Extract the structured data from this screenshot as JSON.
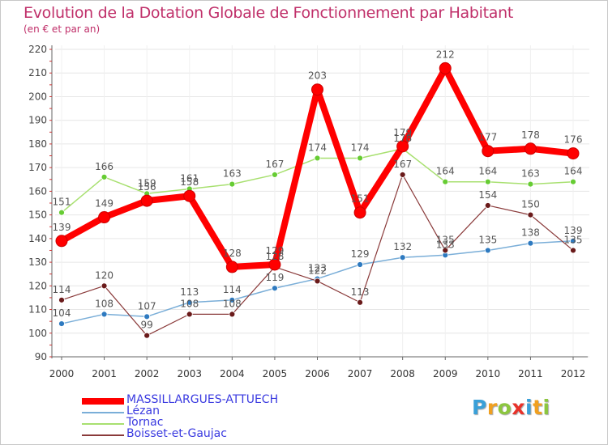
{
  "title": "Evolution de la Dotation Globale de Fonctionnement par Habitant",
  "subtitle": "(en € et par an)",
  "logo": {
    "text": "Proxiti",
    "letters": [
      {
        "ch": "P",
        "color": "#3aa0d8"
      },
      {
        "ch": "r",
        "color": "#f0a020"
      },
      {
        "ch": "o",
        "color": "#8cc63f"
      },
      {
        "ch": "x",
        "color": "#e8322a"
      },
      {
        "ch": "i",
        "color": "#3aa0d8"
      },
      {
        "ch": "t",
        "color": "#f0a020"
      },
      {
        "ch": "i",
        "color": "#8cc63f"
      }
    ]
  },
  "chart_data": {
    "type": "line",
    "title": "Evolution de la Dotation Globale de Fonctionnement par Habitant",
    "ylabel": "(en € et par an)",
    "xlabel": "",
    "x": [
      "2000",
      "2001",
      "2002",
      "2003",
      "2004",
      "2005",
      "2006",
      "2007",
      "2008",
      "2009",
      "2010",
      "2011",
      "2012"
    ],
    "ylim": [
      90,
      220
    ],
    "yticks": [
      90,
      100,
      110,
      120,
      130,
      140,
      150,
      160,
      170,
      180,
      190,
      200,
      210,
      220
    ],
    "legend_position": "bottom-left",
    "series": [
      {
        "name": "MASSILLARGUES-ATTUECH",
        "color": "#ff0000",
        "marker": "#e00000",
        "legend_text_color": "#3a3ae0",
        "values": [
          139,
          149,
          156,
          158,
          128,
          129,
          203,
          151,
          179,
          212,
          177,
          178,
          176
        ]
      },
      {
        "name": "Lézan",
        "color": "#7aaed8",
        "marker": "#2e7ac0",
        "legend_text_color": "#3a3ae0",
        "values": [
          104,
          108,
          107,
          113,
          114,
          119,
          123,
          129,
          132,
          133,
          135,
          138,
          139
        ]
      },
      {
        "name": "Tornac",
        "color": "#a8e070",
        "marker": "#66cc33",
        "legend_text_color": "#3a3ae0",
        "values": [
          151,
          166,
          159,
          161,
          163,
          167,
          174,
          174,
          178,
          164,
          164,
          163,
          164
        ]
      },
      {
        "name": "Boisset-et-Gaujac",
        "color": "#8a3a3a",
        "marker": "#6a1a1a",
        "legend_text_color": "#3a3ae0",
        "values": [
          114,
          120,
          99,
          108,
          108,
          128,
          122,
          113,
          167,
          135,
          154,
          150,
          135
        ]
      }
    ]
  }
}
